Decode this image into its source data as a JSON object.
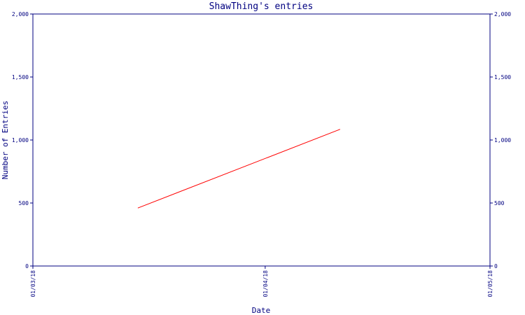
{
  "chart_data": {
    "type": "line",
    "title": "ShawThing's entries",
    "xlabel": "Date",
    "ylabel": "Number of Entries",
    "x_ticks": [
      "01/03/18",
      "01/04/18",
      "01/05/18"
    ],
    "y_ticks": [
      "0",
      "500",
      "1,000",
      "1,500",
      "2,000"
    ],
    "y_ticks_right": [
      "0",
      "500",
      "1,000",
      "1,500",
      "2,000"
    ],
    "ylim": [
      0,
      2000
    ],
    "xlim": [
      "2018-03-01",
      "2018-05-01"
    ],
    "grid": false,
    "series": [
      {
        "x": [
          "2018-03-15",
          "2018-04-11"
        ],
        "y": [
          460,
          1085
        ],
        "color": "#ff0000"
      }
    ],
    "colors": {
      "axis": "#000080",
      "line": "#ff0000"
    }
  }
}
